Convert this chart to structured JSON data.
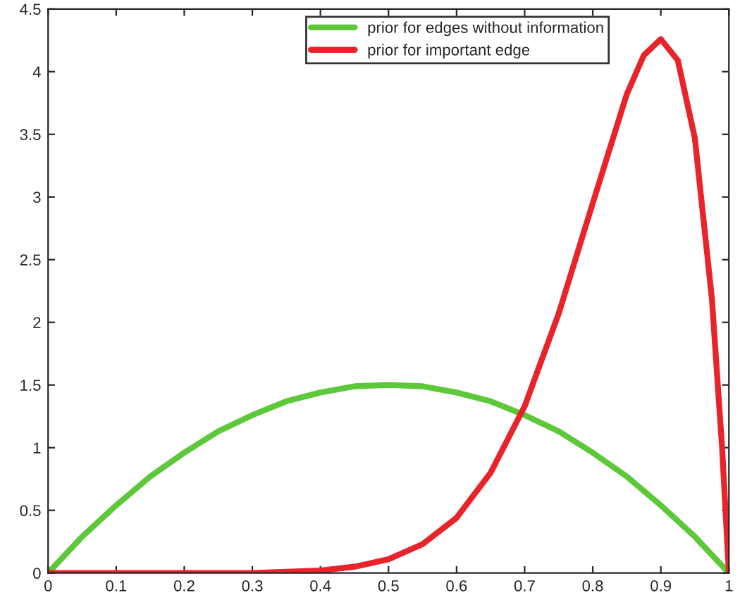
{
  "chart_data": {
    "type": "line",
    "xlim": [
      0,
      1
    ],
    "ylim": [
      0,
      4.5
    ],
    "xticks": [
      0,
      0.1,
      0.2,
      0.3,
      0.4,
      0.5,
      0.6,
      0.7,
      0.8,
      0.9,
      1
    ],
    "yticks": [
      0,
      0.5,
      1,
      1.5,
      2,
      2.5,
      3,
      3.5,
      4,
      4.5
    ],
    "grid": false,
    "legend": "top right",
    "series": [
      {
        "name": "prior for edges without information",
        "color": "#5cc83a",
        "x": [
          0,
          0.05,
          0.1,
          0.15,
          0.2,
          0.25,
          0.3,
          0.35,
          0.4,
          0.45,
          0.5,
          0.55,
          0.6,
          0.65,
          0.7,
          0.75,
          0.8,
          0.85,
          0.9,
          0.95,
          1
        ],
        "values": [
          0,
          0.29,
          0.54,
          0.77,
          0.96,
          1.13,
          1.26,
          1.37,
          1.44,
          1.49,
          1.5,
          1.49,
          1.44,
          1.37,
          1.26,
          1.13,
          0.96,
          0.77,
          0.54,
          0.29,
          0
        ]
      },
      {
        "name": "prior for important edge",
        "color": "#e8242a",
        "x": [
          0,
          0.1,
          0.2,
          0.3,
          0.4,
          0.45,
          0.5,
          0.55,
          0.6,
          0.65,
          0.7,
          0.75,
          0.8,
          0.85,
          0.875,
          0.9,
          0.925,
          0.95,
          0.975,
          0.99,
          1
        ],
        "values": [
          0,
          0,
          0,
          0,
          0.02,
          0.05,
          0.11,
          0.23,
          0.44,
          0.8,
          1.33,
          2.07,
          2.95,
          3.82,
          4.13,
          4.26,
          4.09,
          3.47,
          2.19,
          1.0,
          0
        ]
      }
    ]
  }
}
